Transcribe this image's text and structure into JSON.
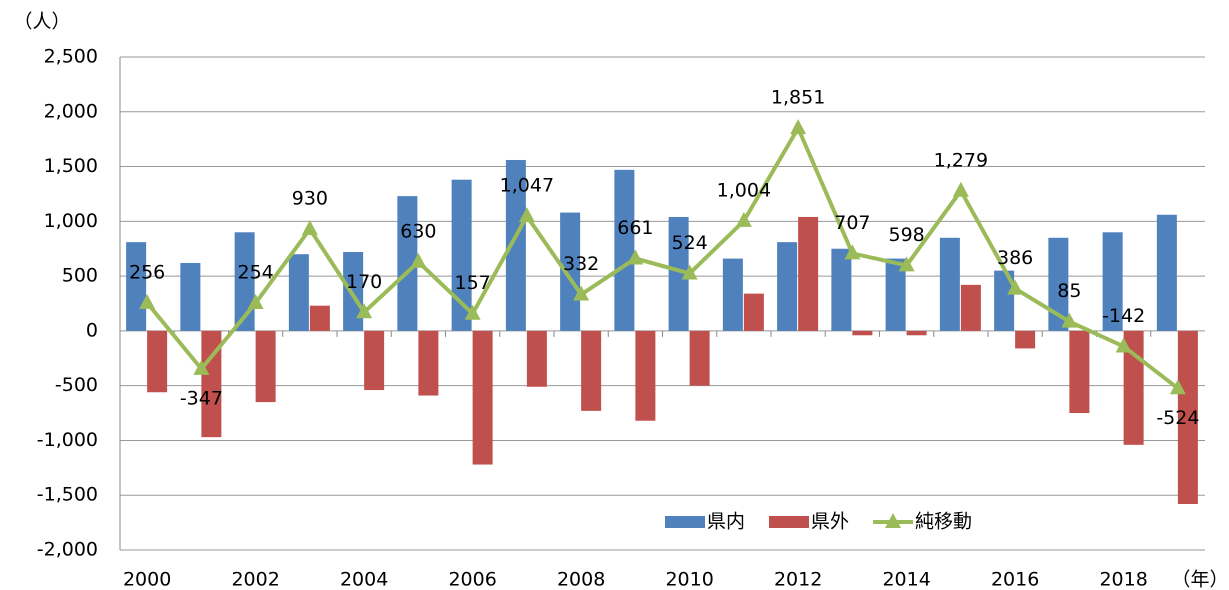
{
  "chart_data": {
    "type": "bar_line",
    "y_unit_label": "（人）",
    "x_unit_label": "（年）",
    "categories": [
      "2000",
      null,
      "2002",
      null,
      "2004",
      null,
      "2006",
      null,
      "2008",
      null,
      "2010",
      null,
      "2012",
      null,
      "2014",
      null,
      "2016",
      null,
      "2018",
      null
    ],
    "series": [
      {
        "name": "県内",
        "type": "bar",
        "color": "#4f81bd",
        "values": [
          810,
          620,
          900,
          700,
          720,
          1230,
          1380,
          1560,
          1080,
          1470,
          1040,
          660,
          810,
          750,
          660,
          850,
          550,
          850,
          900,
          1060
        ]
      },
      {
        "name": "県外",
        "type": "bar",
        "color": "#c0504d",
        "values": [
          -560,
          -970,
          -650,
          230,
          -540,
          -590,
          -1220,
          -510,
          -730,
          -820,
          -500,
          340,
          1040,
          -40,
          -40,
          420,
          -160,
          -750,
          -1040,
          -1580
        ]
      },
      {
        "name": "純移動",
        "type": "line",
        "color": "#9bbb59",
        "values": [
          256,
          -347,
          254,
          930,
          170,
          630,
          157,
          1047,
          332,
          661,
          524,
          1004,
          1851,
          707,
          598,
          1279,
          386,
          85,
          -142,
          -524
        ],
        "value_labels": [
          "256",
          "-347",
          "254",
          "930",
          "170",
          "630",
          "157",
          "1,047",
          "332",
          "661",
          "524",
          "1,004",
          "1,851",
          "707",
          "598",
          "1,279",
          "386",
          "85",
          "-142",
          "-524"
        ]
      }
    ],
    "ylim": [
      -2000,
      2500
    ],
    "yticks": [
      {
        "value": -2000,
        "label": "-2,000"
      },
      {
        "value": -1500,
        "label": "-1,500"
      },
      {
        "value": -1000,
        "label": "-1,000"
      },
      -500,
      0,
      500,
      {
        "value": 1000,
        "label": "1,000"
      },
      {
        "value": 1500,
        "label": "1,500"
      },
      {
        "value": 2000,
        "label": "2,000"
      },
      {
        "value": 2500,
        "label": "2,500"
      }
    ],
    "grid": true,
    "legend": "lower right"
  }
}
